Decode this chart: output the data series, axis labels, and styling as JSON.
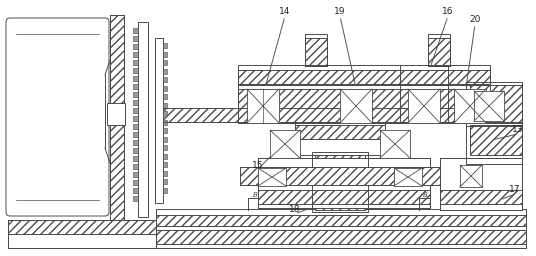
{
  "fig_width": 5.36,
  "fig_height": 2.56,
  "dpi": 100,
  "bg_color": "#ffffff",
  "lc": "#4a4a4a",
  "lw": 0.7
}
